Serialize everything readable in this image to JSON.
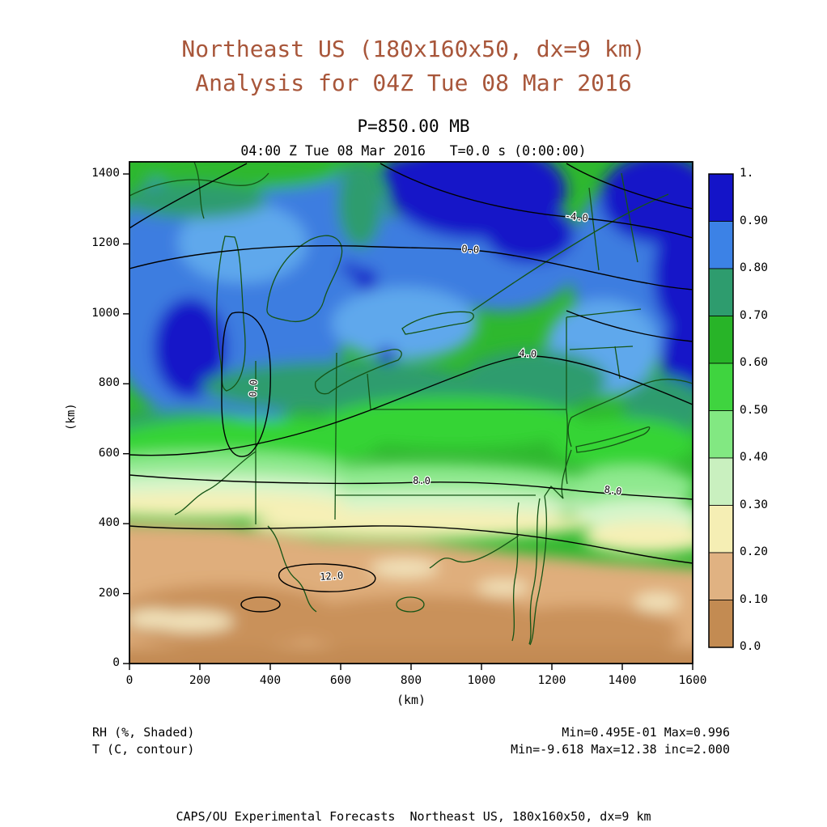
{
  "header": {
    "title_line1": "Northeast US (180x160x50, dx=9 km)",
    "title_line2": "Analysis for 04Z Tue 08 Mar 2016",
    "level_label": "P=850.00 MB",
    "time_label": "04:00 Z Tue 08 Mar 2016   T=0.0 s (0:00:00)"
  },
  "chart_data": {
    "type": "heatmap",
    "title": "Northeast US (180x160x50, dx=9 km) Analysis for 04Z Tue 08 Mar 2016",
    "level": "P=850.00 MB",
    "valid_time": "04:00 Z Tue 08 Mar 2016",
    "elapsed_time": "T=0.0 s (0:00:00)",
    "xlabel": "(km)",
    "ylabel": "(km)",
    "xlim": [
      0,
      1600
    ],
    "ylim": [
      0,
      1440
    ],
    "grid": false,
    "x_ticks": [
      "0",
      "200",
      "400",
      "600",
      "800",
      "1000",
      "1200",
      "1400",
      "1600"
    ],
    "y_ticks": [
      "0",
      "200",
      "400",
      "600",
      "800",
      "1000",
      "1200",
      "1400"
    ],
    "shaded_field": {
      "variable": "RH",
      "units": "%",
      "min": 0.0495,
      "max": 0.996,
      "legend_text": "RH (%, Shaded)",
      "stats_text": "Min=0.495E-01 Max=0.996",
      "pattern": "RH 0.9-1.0 (dark blue) over the upper-right quadrant, top-center and a pocket west of Lake Michigan; 0.7-0.9 (blues) in a band from the upper-left across the Great Lakes to New England; 0.4-0.7 (greens) across central NY/PA; 0.05-0.3 (tan/brown) over the southern third with scattered pale cream patches"
    },
    "contour_field": {
      "variable": "T",
      "units": "C",
      "min": -9.618,
      "max": 12.38,
      "interval": 2.0,
      "legend_text": "T (C, contour)",
      "stats_text": "Min=-9.618 Max=12.38 inc=2.000",
      "labels": [
        "-4.0",
        "0.0",
        "0.0",
        "4.0",
        "8.0",
        "8.0",
        "12.0"
      ]
    },
    "colorbar": {
      "tick_labels": [
        "1.",
        "0.90",
        "0.80",
        "0.70",
        "0.60",
        "0.50",
        "0.40",
        "0.30",
        "0.20",
        "0.10",
        "0.0"
      ],
      "segment_colors_top_to_bottom": [
        "#1414c8",
        "#3c82e6",
        "#2e9c6e",
        "#28b428",
        "#3fd43f",
        "#82e882",
        "#c9f0bf",
        "#f5eeb4",
        "#e0b282",
        "#c38b52"
      ]
    }
  },
  "footnotes": {
    "shaded_legend": "RH (%, Shaded)",
    "contour_legend": "T (C, contour)",
    "shaded_stats": "Min=0.495E-01 Max=0.996",
    "contour_stats": "Min=-9.618 Max=12.38 inc=2.000"
  },
  "footer": "CAPS/OU Experimental Forecasts  Northeast US, 180x160x50, dx=9 km"
}
